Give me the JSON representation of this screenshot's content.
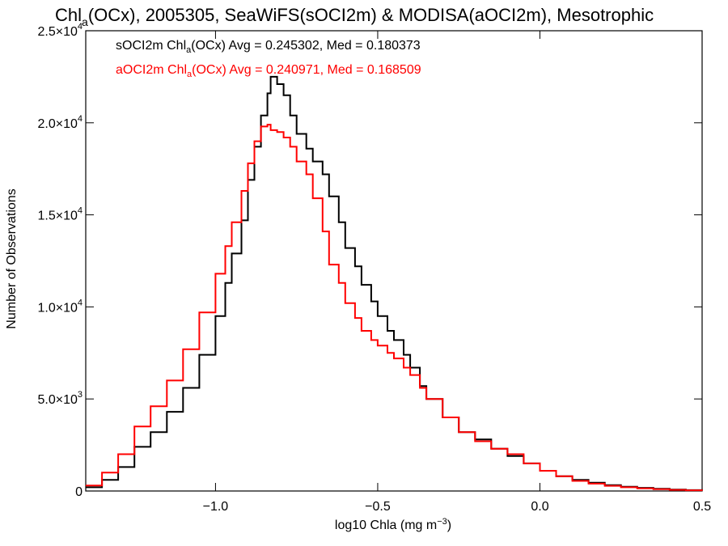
{
  "chart_data": {
    "type": "line",
    "title_main": "Chl",
    "title_sub": "a",
    "title_rest": "(OCx), 2005305, SeaWiFS(sOCI2m) & MODISA(aOCI2m), Mesotrophic",
    "xlabel_main": "log10 Chla (mg m",
    "xlabel_sup": "−3",
    "xlabel_end": ")",
    "ylabel": "Number of Observations",
    "xlim": [
      -1.4,
      0.5
    ],
    "ylim": [
      0,
      25000
    ],
    "x_ticks": [
      {
        "value": -1.0,
        "label": "−1.0"
      },
      {
        "value": -0.5,
        "label": "−0.5"
      },
      {
        "value": 0.0,
        "label": "0.0"
      },
      {
        "value": 0.5,
        "label": "0.5"
      }
    ],
    "y_ticks": [
      {
        "value": 0,
        "mant": "0",
        "exp": ""
      },
      {
        "value": 5000,
        "mant": "5.0×10",
        "exp": "3"
      },
      {
        "value": 10000,
        "mant": "1.0×10",
        "exp": "4"
      },
      {
        "value": 15000,
        "mant": "1.5×10",
        "exp": "4"
      },
      {
        "value": 20000,
        "mant": "2.0×10",
        "exp": "4"
      },
      {
        "value": 25000,
        "mant": "2.5×10",
        "exp": "4"
      }
    ],
    "legend": [
      {
        "prefix": "sOCI2m Chl",
        "sub": "a",
        "suffix": "(OCx) Avg = 0.245302, Med = 0.180373",
        "color": "#000000"
      },
      {
        "prefix": "aOCI2m Chl",
        "sub": "a",
        "suffix": "(OCx) Avg = 0.240971, Med = 0.168509",
        "color": "#ff0000"
      }
    ],
    "series": [
      {
        "color": "#000000",
        "x": [
          -1.4,
          -1.35,
          -1.3,
          -1.25,
          -1.2,
          -1.15,
          -1.1,
          -1.05,
          -1.0,
          -0.97,
          -0.95,
          -0.92,
          -0.9,
          -0.88,
          -0.86,
          -0.84,
          -0.83,
          -0.81,
          -0.79,
          -0.77,
          -0.75,
          -0.72,
          -0.7,
          -0.67,
          -0.65,
          -0.62,
          -0.6,
          -0.57,
          -0.55,
          -0.52,
          -0.5,
          -0.47,
          -0.45,
          -0.42,
          -0.4,
          -0.37,
          -0.35,
          -0.3,
          -0.25,
          -0.2,
          -0.15,
          -0.1,
          -0.05,
          0.0,
          0.05,
          0.1,
          0.15,
          0.2,
          0.25,
          0.3,
          0.35,
          0.4,
          0.45,
          0.5
        ],
        "y": [
          200,
          600,
          1300,
          2400,
          3200,
          4300,
          5600,
          7400,
          9500,
          11300,
          12900,
          14700,
          16900,
          18700,
          20400,
          21600,
          22500,
          22100,
          21500,
          20400,
          19400,
          18600,
          17900,
          17200,
          16000,
          14600,
          13200,
          12200,
          11200,
          10300,
          9500,
          8700,
          8200,
          7400,
          6700,
          5700,
          5000,
          4000,
          3200,
          2800,
          2300,
          1900,
          1500,
          1100,
          800,
          600,
          450,
          320,
          230,
          170,
          120,
          80,
          50,
          20
        ]
      },
      {
        "color": "#ff0000",
        "x": [
          -1.4,
          -1.35,
          -1.3,
          -1.25,
          -1.2,
          -1.15,
          -1.1,
          -1.05,
          -1.0,
          -0.97,
          -0.95,
          -0.92,
          -0.9,
          -0.88,
          -0.86,
          -0.84,
          -0.83,
          -0.81,
          -0.79,
          -0.77,
          -0.75,
          -0.72,
          -0.7,
          -0.67,
          -0.65,
          -0.62,
          -0.6,
          -0.57,
          -0.55,
          -0.52,
          -0.5,
          -0.47,
          -0.45,
          -0.42,
          -0.4,
          -0.37,
          -0.35,
          -0.3,
          -0.25,
          -0.2,
          -0.15,
          -0.1,
          -0.05,
          0.0,
          0.05,
          0.1,
          0.15,
          0.2,
          0.25,
          0.3,
          0.35,
          0.4,
          0.45,
          0.5
        ],
        "y": [
          300,
          1000,
          2000,
          3500,
          4600,
          6000,
          7700,
          9700,
          11800,
          13300,
          14600,
          16300,
          17800,
          19000,
          19800,
          19900,
          19600,
          19500,
          19200,
          18700,
          17900,
          17200,
          15900,
          14100,
          12300,
          11300,
          10200,
          9400,
          8700,
          8200,
          7900,
          7500,
          7200,
          6700,
          6300,
          5600,
          5000,
          4000,
          3200,
          2700,
          2300,
          2000,
          1500,
          1100,
          800,
          550,
          400,
          280,
          200,
          140,
          100,
          60,
          40,
          20
        ]
      }
    ]
  }
}
